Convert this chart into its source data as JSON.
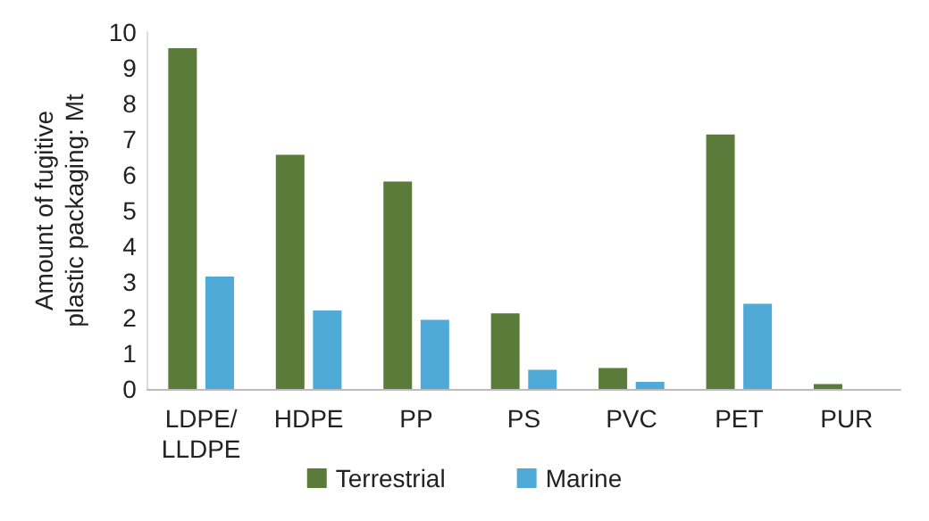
{
  "chart_data": {
    "type": "bar",
    "ylabel": "Amount of fugitive plastic packaging: Mt",
    "categories": [
      "LDPE/\nLLDPE",
      "HDPE",
      "PP",
      "PS",
      "PVC",
      "PET",
      "PUR"
    ],
    "series": [
      {
        "name": "Terrestrial",
        "color": "#5b7b3a",
        "values": [
          9.55,
          6.56,
          5.81,
          2.12,
          0.59,
          7.13,
          0.14
        ]
      },
      {
        "name": "Marine",
        "color": "#4faad8",
        "values": [
          3.15,
          2.2,
          1.94,
          0.54,
          0.2,
          2.39,
          0
        ]
      }
    ],
    "ylim": [
      0,
      10
    ],
    "yticks": [
      0,
      1,
      2,
      3,
      4,
      5,
      6,
      7,
      8,
      9,
      10
    ],
    "grid": false,
    "legend": "bottom"
  }
}
